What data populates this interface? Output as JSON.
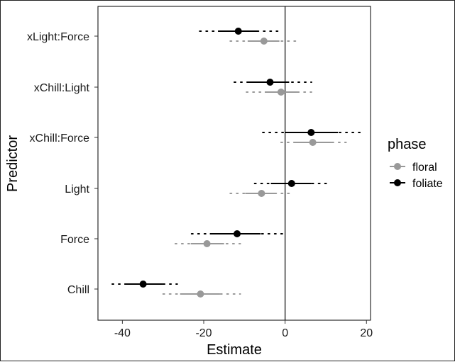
{
  "chart_data": {
    "type": "scatter",
    "subtype": "coefficient-plot",
    "title": "",
    "xlabel": "Estimate",
    "ylabel": "Predictor",
    "xlim": [
      -46,
      21
    ],
    "xticks": [
      -40,
      -20,
      0,
      20
    ],
    "reference_line_x": 0,
    "categories": [
      "xLight:Force",
      "xChill:Light",
      "xChill:Force",
      "Light",
      "Force",
      "Chill"
    ],
    "legend": {
      "title": "phase",
      "position": "right"
    },
    "grid": false,
    "series": [
      {
        "name": "floral",
        "color": "#999999",
        "estimates": [
          -5.2,
          -1.0,
          6.8,
          -5.8,
          -19.2,
          -20.8
        ],
        "inner_interval": [
          [
            -9.2,
            -1.4
          ],
          [
            -5.0,
            3.0
          ],
          [
            2.5,
            11.5
          ],
          [
            -9.8,
            -2.5
          ],
          [
            -23.2,
            -15.0
          ],
          [
            -25.8,
            -16.0
          ]
        ],
        "outer_interval": [
          [
            -13.5,
            2.6
          ],
          [
            -9.5,
            6.5
          ],
          [
            -1.0,
            15.0
          ],
          [
            -13.5,
            1.5
          ],
          [
            -27.0,
            -11.0
          ],
          [
            -30.0,
            -11.0
          ]
        ]
      },
      {
        "name": "foliate",
        "color": "#000000",
        "estimates": [
          -11.5,
          -3.7,
          6.4,
          1.6,
          -11.8,
          -34.9
        ],
        "inner_interval": [
          [
            -16.5,
            -6.5
          ],
          [
            -9.0,
            1.0
          ],
          [
            0.0,
            13.0
          ],
          [
            -3.5,
            6.5
          ],
          [
            -18.5,
            -6.0
          ],
          [
            -39.5,
            -30.0
          ]
        ],
        "outer_interval": [
          [
            -21.0,
            -1.0
          ],
          [
            -12.5,
            6.5
          ],
          [
            -5.5,
            18.5
          ],
          [
            -7.5,
            10.5
          ],
          [
            -23.0,
            0.0
          ],
          [
            -42.5,
            -26.5
          ]
        ]
      }
    ]
  }
}
